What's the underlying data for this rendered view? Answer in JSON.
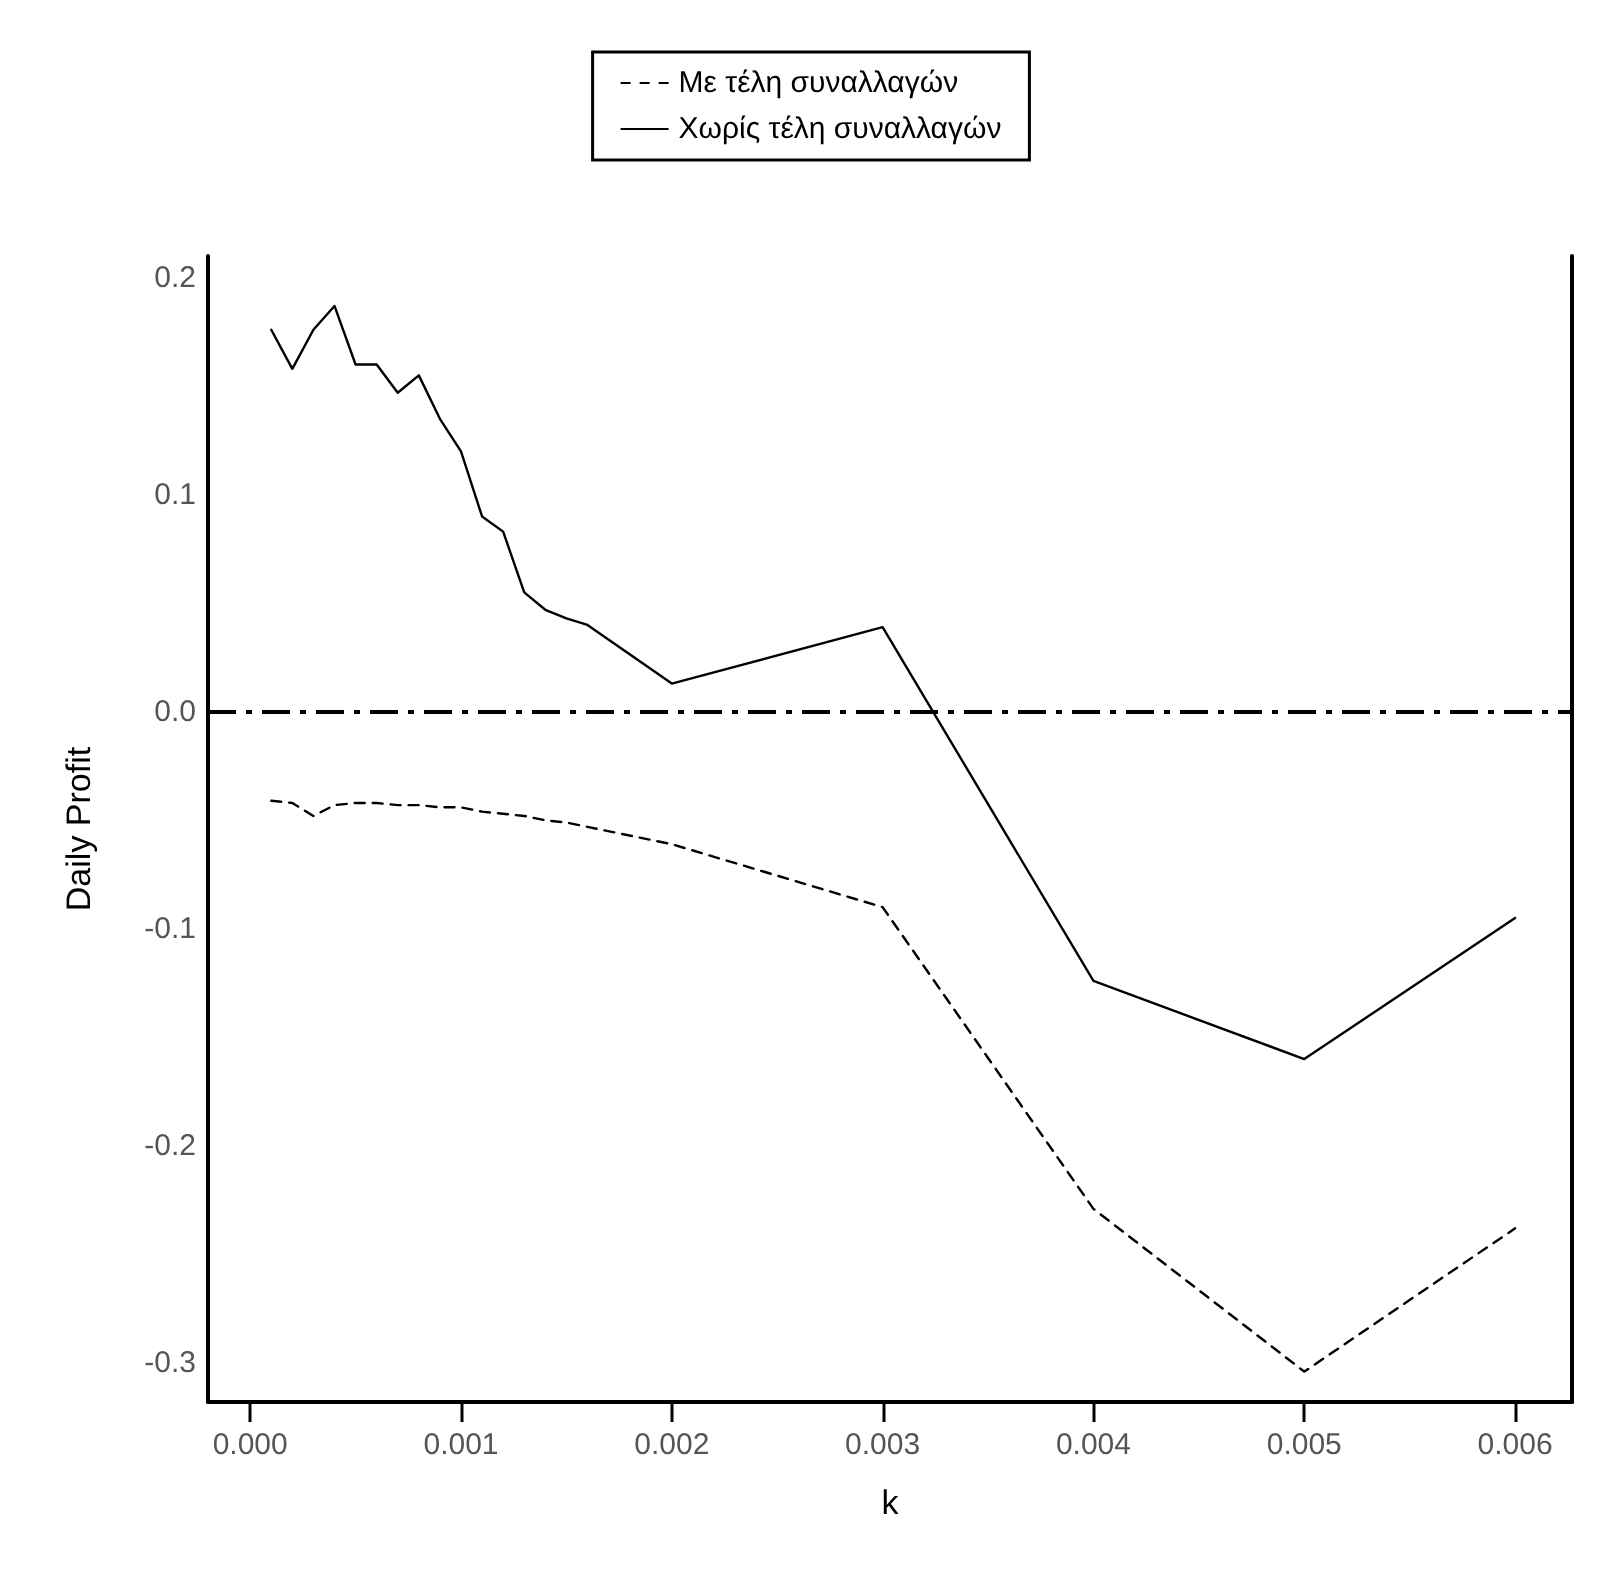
{
  "chart_data": {
    "type": "line",
    "xlabel": "k",
    "ylabel": "Daily Profit",
    "xlim": [
      -0.0002,
      0.00627
    ],
    "ylim": [
      -0.318,
      0.21
    ],
    "xticks": [
      {
        "value": 0,
        "label": "0.000"
      },
      0.001,
      0.002,
      0.003,
      0.004,
      0.005,
      {
        "value": 0.006,
        "label": "0.006"
      }
    ],
    "yticks": [
      -0.3,
      -0.2,
      -0.1,
      {
        "value": 0,
        "label": "0.0"
      },
      0.1,
      0.2
    ],
    "grid": false,
    "legend": "top",
    "marker": "none",
    "ref_lines": [
      {
        "axis": "y",
        "value": 0,
        "color": "#000000",
        "line_style": "dashed"
      }
    ],
    "series": [
      {
        "name": "Με τέλη συναλλαγών",
        "color": "#000000",
        "line_style": "dashed",
        "x": [
          0.0001,
          0.0002,
          0.0003,
          0.0004,
          0.0005,
          0.0006,
          0.0007,
          0.0008,
          0.0009,
          0.001,
          0.0011,
          0.0012,
          0.0013,
          0.0014,
          0.0015,
          0.0016,
          0.002,
          0.003,
          0.004,
          0.005,
          0.006
        ],
        "values": [
          -0.041,
          -0.042,
          -0.048,
          -0.043,
          -0.042,
          -0.042,
          -0.043,
          -0.043,
          -0.044,
          -0.044,
          -0.046,
          -0.047,
          -0.048,
          -0.05,
          -0.051,
          -0.053,
          -0.061,
          -0.09,
          -0.229,
          -0.304,
          -0.238
        ]
      },
      {
        "name": "Χωρίς τέλη συναλλαγών",
        "color": "#000000",
        "line_style": "solid",
        "x": [
          0.0001,
          0.0002,
          0.0003,
          0.0004,
          0.0005,
          0.0006,
          0.0007,
          0.0008,
          0.0009,
          0.001,
          0.0011,
          0.0012,
          0.0013,
          0.0014,
          0.0015,
          0.0016,
          0.002,
          0.003,
          0.004,
          0.005,
          0.006
        ],
        "values": [
          0.176,
          0.158,
          0.176,
          0.187,
          0.16,
          0.16,
          0.147,
          0.155,
          0.135,
          0.12,
          0.09,
          0.083,
          0.055,
          0.047,
          0.043,
          0.04,
          0.013,
          0.039,
          -0.124,
          -0.16,
          -0.095
        ]
      }
    ]
  }
}
